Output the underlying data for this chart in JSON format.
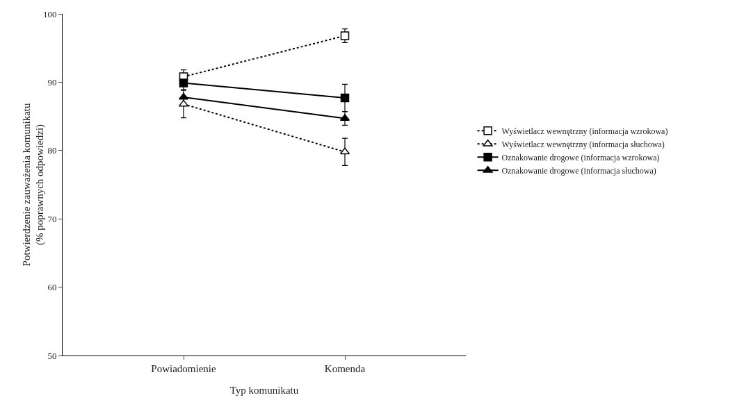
{
  "chart_data": {
    "type": "line",
    "xlabel": "Typ komunikatu",
    "ylabel": "Potwierdzenie zauważenia komunikatu\n(% poprawnych odpowiedzi)",
    "categories": [
      "Powiadomienie",
      "Komenda"
    ],
    "series": [
      {
        "name": "Wyświetlacz wewnętrzny (informacja wzrokowa)",
        "color": "#000000",
        "values": [
          90.8,
          96.8
        ],
        "errors": [
          1,
          1
        ],
        "line_style": "dotted",
        "marker": "square"
      },
      {
        "name": "Wyświetlacz wewnętrzny (informacja słuchowa)",
        "color": "#000000",
        "values": [
          86.8,
          79.8
        ],
        "errors": [
          2,
          2
        ],
        "line_style": "dotted",
        "marker": "triangle"
      },
      {
        "name": "Oznakowanie drogowe (informacja wzrokowa)",
        "color": "#000000",
        "values": [
          89.9,
          87.7
        ],
        "errors": [
          1,
          2
        ],
        "line_style": "solid",
        "marker": "square"
      },
      {
        "name": "Oznakowanie drogowe (informacja słuchowa)",
        "color": "#000000",
        "values": [
          87.8,
          84.7
        ],
        "errors": [
          null,
          1
        ],
        "line_style": "solid",
        "marker": "triangle"
      }
    ],
    "ylim": [
      50,
      100
    ],
    "yticks": [
      50,
      60,
      70,
      80,
      90,
      100
    ],
    "grid": false,
    "legend": "right"
  }
}
